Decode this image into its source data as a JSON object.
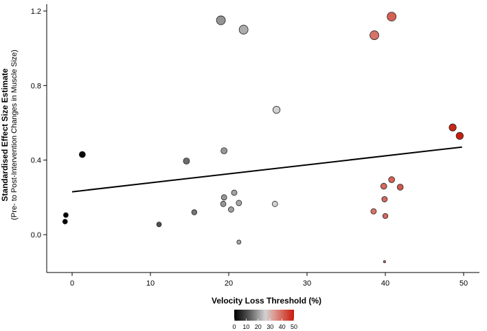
{
  "chart_data": {
    "type": "scatter",
    "title": "",
    "xlabel": "Velocity Loss Threshold (%)",
    "ylabel": "Standardised Effect Size Estimate",
    "ylabel_sub": "(Pre- to Post-Intervention Changes in Muscle Size)",
    "xlim": [
      -3,
      51
    ],
    "ylim": [
      -0.2,
      1.22
    ],
    "x_ticks": [
      0,
      10,
      20,
      30,
      40,
      50
    ],
    "y_ticks": [
      0.0,
      0.4,
      0.8,
      1.2
    ],
    "y_tick_labels": [
      "0.0",
      "0.4",
      "0.8",
      "1.2"
    ],
    "regression_line": {
      "x": [
        0,
        49.8
      ],
      "y": [
        0.23,
        0.47
      ]
    },
    "points": [
      {
        "x": -0.8,
        "y": 0.105,
        "w": 3.5
      },
      {
        "x": -0.9,
        "y": 0.07,
        "w": 3.5
      },
      {
        "x": 1.3,
        "y": 0.43,
        "w": 4.5
      },
      {
        "x": 11.1,
        "y": 0.055,
        "w": 3.5
      },
      {
        "x": 14.6,
        "y": 0.395,
        "w": 4.5
      },
      {
        "x": 15.6,
        "y": 0.12,
        "w": 3.8
      },
      {
        "x": 19.0,
        "y": 1.15,
        "w": 6.5
      },
      {
        "x": 21.9,
        "y": 1.1,
        "w": 6.5
      },
      {
        "x": 19.4,
        "y": 0.45,
        "w": 4.5
      },
      {
        "x": 19.4,
        "y": 0.2,
        "w": 4.0
      },
      {
        "x": 19.3,
        "y": 0.165,
        "w": 4.0
      },
      {
        "x": 20.7,
        "y": 0.225,
        "w": 4.0
      },
      {
        "x": 20.3,
        "y": 0.135,
        "w": 4.0
      },
      {
        "x": 21.3,
        "y": 0.17,
        "w": 4.0
      },
      {
        "x": 21.3,
        "y": -0.04,
        "w": 3.0
      },
      {
        "x": 26.1,
        "y": 0.67,
        "w": 5.2
      },
      {
        "x": 25.9,
        "y": 0.165,
        "w": 4.0
      },
      {
        "x": 38.6,
        "y": 1.07,
        "w": 6.5
      },
      {
        "x": 40.8,
        "y": 1.17,
        "w": 6.5
      },
      {
        "x": 48.6,
        "y": 0.575,
        "w": 5.2
      },
      {
        "x": 49.5,
        "y": 0.53,
        "w": 5.2
      },
      {
        "x": 40.8,
        "y": 0.295,
        "w": 4.4
      },
      {
        "x": 39.8,
        "y": 0.26,
        "w": 4.4
      },
      {
        "x": 41.9,
        "y": 0.255,
        "w": 4.4
      },
      {
        "x": 39.9,
        "y": 0.19,
        "w": 4.0
      },
      {
        "x": 38.5,
        "y": 0.125,
        "w": 4.0
      },
      {
        "x": 40.0,
        "y": 0.1,
        "w": 3.8
      },
      {
        "x": 39.9,
        "y": -0.145,
        "w": 1.6
      }
    ],
    "legend": {
      "title": "",
      "placement": "bottom-center",
      "range": [
        0,
        50
      ],
      "tick_values": [
        0,
        10,
        20,
        30,
        40,
        50
      ],
      "tick_labels": [
        "0",
        "10",
        "20",
        "30",
        "40",
        "50"
      ],
      "colors": [
        "#000000",
        "#9a9a9a",
        "#d9d9d9",
        "#d9443a",
        "#cc1a0e"
      ]
    }
  }
}
